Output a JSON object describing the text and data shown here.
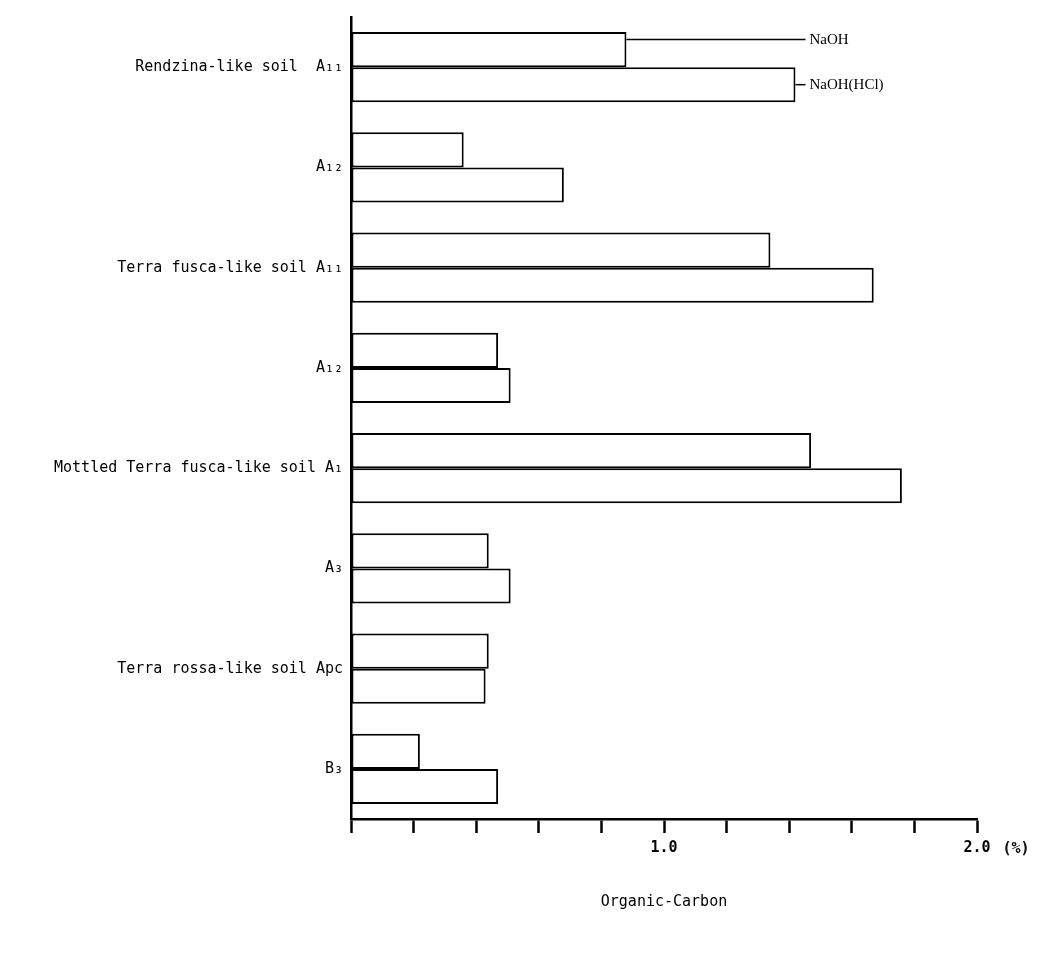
{
  "chart_data": {
    "type": "bar",
    "orientation": "horizontal",
    "xlabel": "Organic-Carbon",
    "categories": [
      "Rendzina-like soil  A₁₁",
      "A₁₂",
      "Terra fusca-like soil A₁₁",
      "A₁₂",
      "Mottled Terra fusca-like soil A₁",
      "A₃",
      "Terra rossa-like soil Apc",
      "B₃"
    ],
    "series": [
      {
        "name": "NaOH",
        "color": "#ffffff",
        "values": [
          0.88,
          0.36,
          1.34,
          0.47,
          1.47,
          0.44,
          0.44,
          0.22
        ]
      },
      {
        "name": "NaOH(HCl)",
        "color": "#ffffff",
        "values": [
          1.42,
          0.68,
          1.67,
          0.51,
          1.76,
          0.51,
          0.43,
          0.47
        ]
      }
    ],
    "xlim": [
      0,
      2.0
    ],
    "xticks": [
      {
        "value": 0,
        "label": null
      },
      {
        "value": 0.2,
        "label": null
      },
      {
        "value": 0.4,
        "label": null
      },
      {
        "value": 0.6,
        "label": null
      },
      {
        "value": 0.8,
        "label": null
      },
      {
        "value": 1.0,
        "label": "1.0"
      },
      {
        "value": 1.2,
        "label": null
      },
      {
        "value": 1.4,
        "label": null
      },
      {
        "value": 1.6,
        "label": null
      },
      {
        "value": 1.8,
        "label": null
      },
      {
        "value": 2.0,
        "label": "2.0"
      }
    ],
    "annotations": [
      "(%)"
    ],
    "grid": false
  }
}
